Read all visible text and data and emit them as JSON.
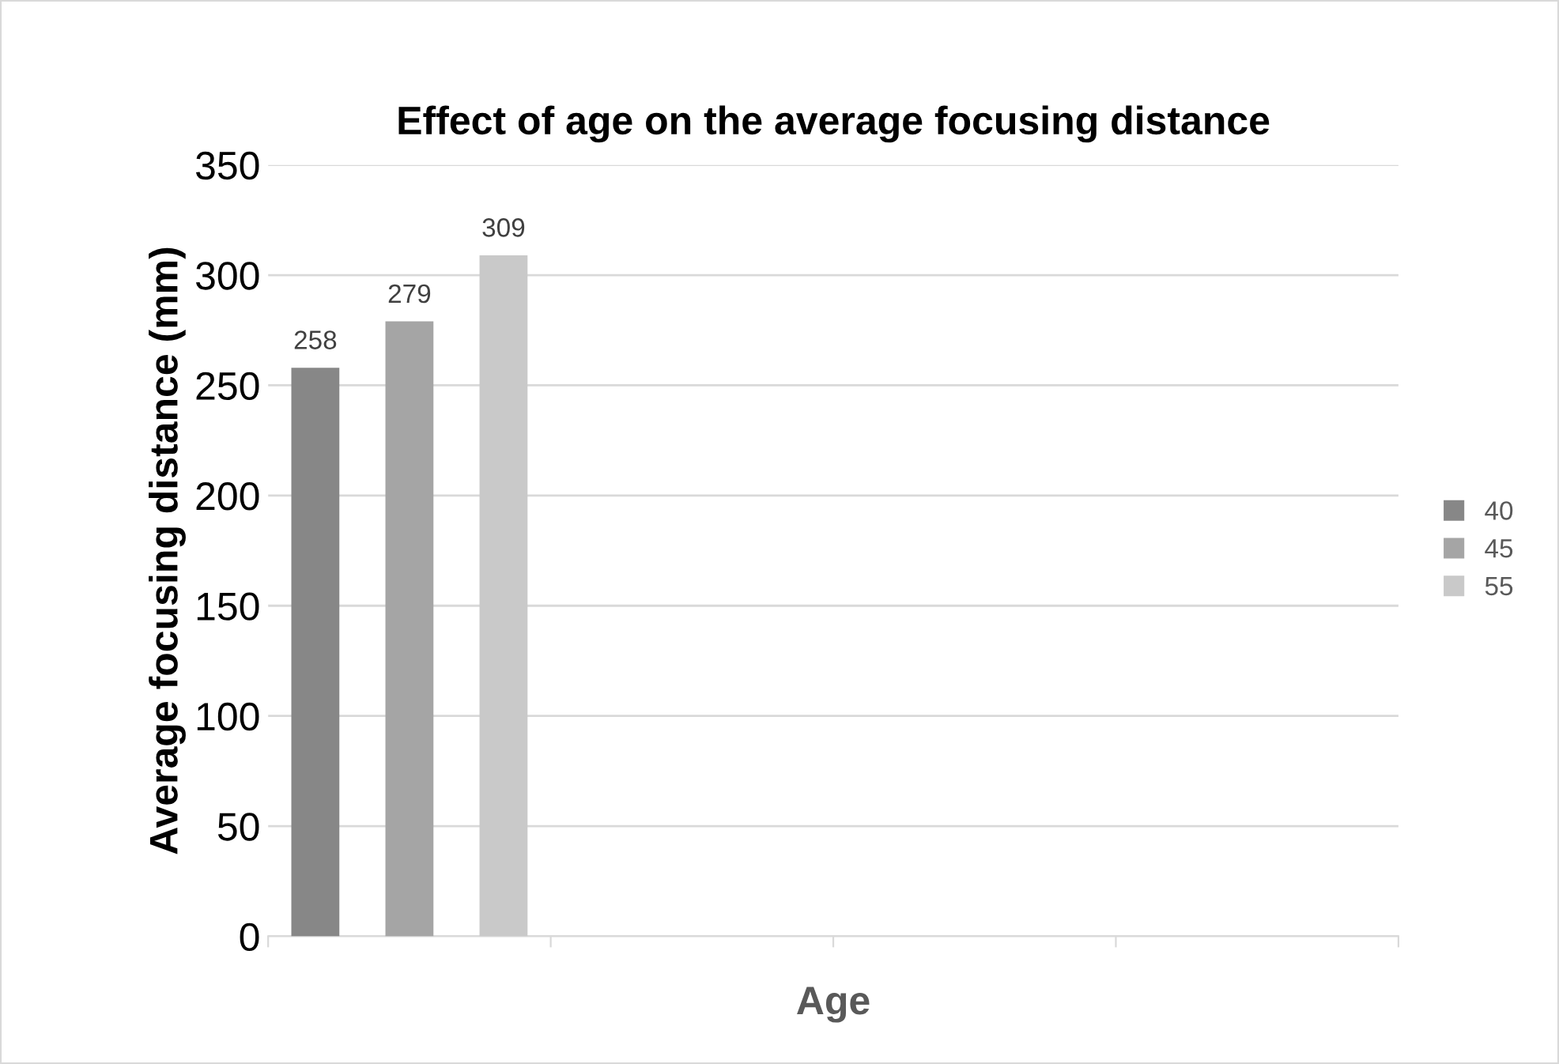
{
  "chart_data": {
    "type": "bar",
    "title": "Effect of age on the average focusing distance",
    "xlabel": "Age",
    "ylabel": "Average focusing distance (mm)",
    "categories": [
      null,
      null,
      null,
      null
    ],
    "series": [
      {
        "name": "40",
        "color": "#878787",
        "values": [
          258,
          null,
          null,
          null
        ]
      },
      {
        "name": "45",
        "color": "#a5a5a5",
        "values": [
          279,
          null,
          null,
          null
        ]
      },
      {
        "name": "55",
        "color": "#c9c9c9",
        "values": [
          309,
          null,
          null,
          null
        ]
      }
    ],
    "ylim": [
      0,
      350
    ],
    "yticks": [
      0,
      50,
      100,
      150,
      200,
      250,
      300,
      350
    ],
    "grid": "y",
    "legend": "right",
    "data_labels": true
  }
}
